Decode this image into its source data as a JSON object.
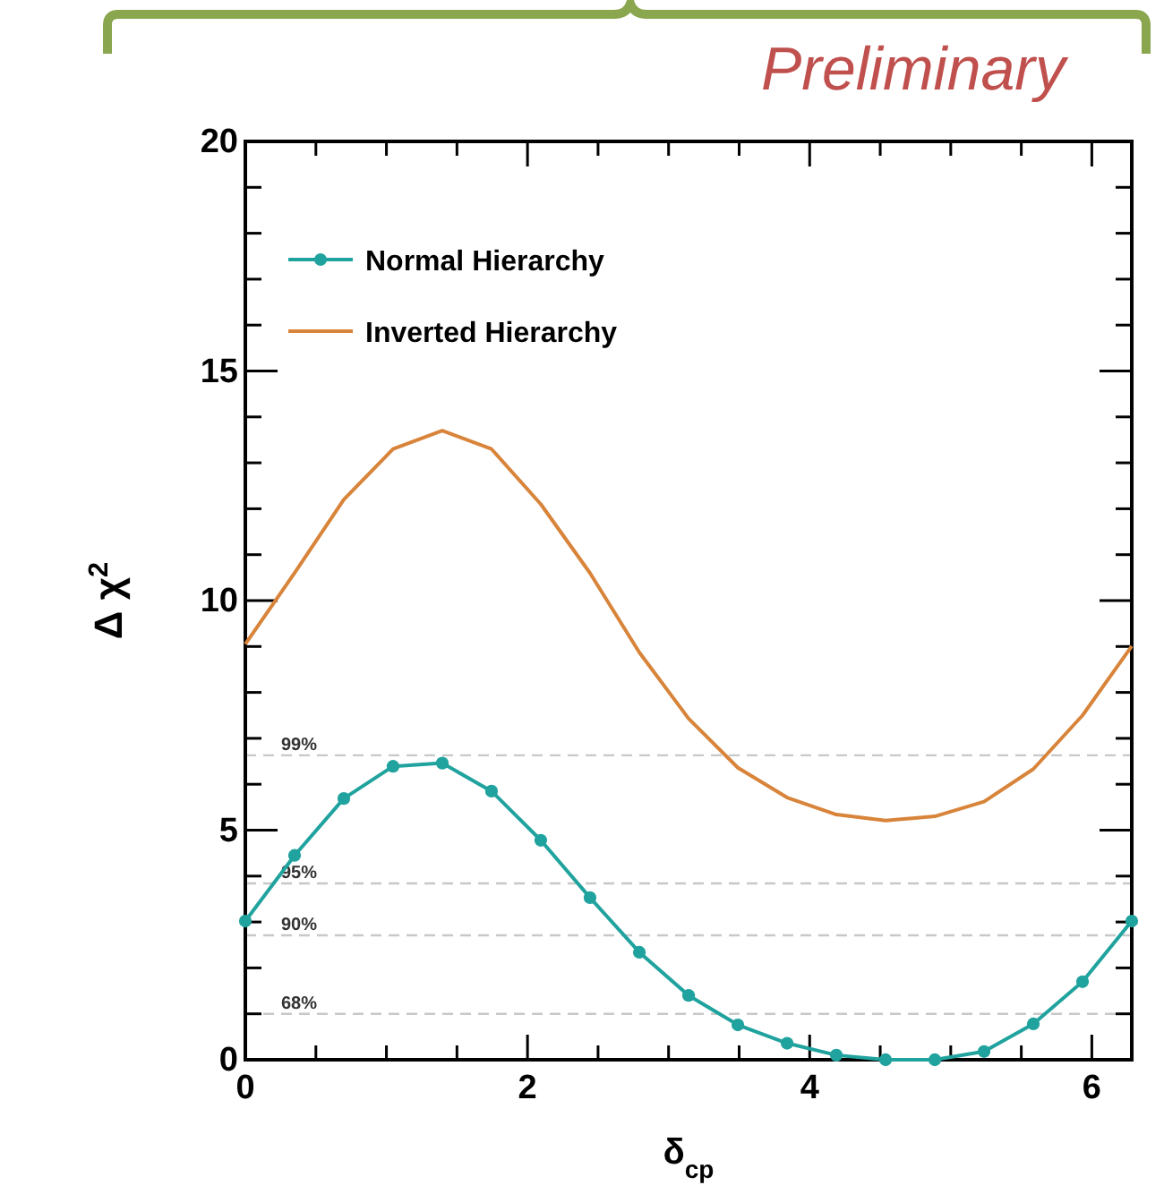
{
  "chart_data": {
    "type": "line",
    "xlabel": "δ$_{cp}$",
    "ylabel": "Δ χ$^{2}$",
    "annotations": [
      "Preliminary",
      {
        "text": "99%",
        "y": 6.63
      },
      {
        "text": "95%",
        "y": 3.84
      },
      {
        "text": "90%",
        "y": 2.71
      },
      {
        "text": "68%",
        "y": 1.0
      }
    ],
    "x": [
      0,
      0.349,
      0.698,
      1.047,
      1.396,
      1.745,
      2.094,
      2.443,
      2.793,
      3.142,
      3.491,
      3.84,
      4.189,
      4.538,
      4.887,
      5.236,
      5.585,
      5.934,
      6.283
    ],
    "series": [
      {
        "name": "Normal Hierarchy",
        "color": "#20a39e",
        "marker": "circle",
        "values": [
          3.02,
          4.45,
          5.69,
          6.39,
          6.46,
          5.85,
          4.78,
          3.53,
          2.34,
          1.4,
          0.76,
          0.36,
          0.1,
          0.0,
          0.0,
          0.18,
          0.78,
          1.7,
          3.02
        ]
      },
      {
        "name": "Inverted Hierarchy",
        "color": "#d8843a",
        "marker": "none",
        "values": [
          9.05,
          10.6,
          12.2,
          13.3,
          13.7,
          13.3,
          12.1,
          10.6,
          8.87,
          7.43,
          6.36,
          5.71,
          5.34,
          5.21,
          5.3,
          5.62,
          6.33,
          7.5,
          9.01
        ]
      }
    ],
    "xlim": [
      0,
      6.283
    ],
    "xticks": [
      0,
      {
        "value": 0.5,
        "label": null
      },
      {
        "value": 1,
        "label": null
      },
      {
        "value": 1.5,
        "label": null
      },
      2,
      {
        "value": 2.5,
        "label": null
      },
      {
        "value": 3,
        "label": null
      },
      {
        "value": 3.5,
        "label": null
      },
      4,
      {
        "value": 4.5,
        "label": null
      },
      {
        "value": 5,
        "label": null
      },
      {
        "value": 5.5,
        "label": null
      },
      6
    ],
    "ylim": [
      0,
      20
    ],
    "yticks": [
      0,
      {
        "value": 1,
        "label": null
      },
      {
        "value": 2,
        "label": null
      },
      {
        "value": 3,
        "label": null
      },
      {
        "value": 4,
        "label": null
      },
      5,
      {
        "value": 6,
        "label": null
      },
      {
        "value": 7,
        "label": null
      },
      {
        "value": 8,
        "label": null
      },
      {
        "value": 9,
        "label": null
      },
      10,
      {
        "value": 11,
        "label": null
      },
      {
        "value": 12,
        "label": null
      },
      {
        "value": 13,
        "label": null
      },
      {
        "value": 14,
        "label": null
      },
      15,
      {
        "value": 16,
        "label": null
      },
      {
        "value": 17,
        "label": null
      },
      {
        "value": 18,
        "label": null
      },
      {
        "value": 19,
        "label": null
      },
      20
    ],
    "ref_lines": [
      {
        "axis": "y",
        "value": 6.63,
        "color": "#c8c8c8",
        "line_style": "dashed"
      },
      {
        "axis": "y",
        "value": 3.84,
        "color": "#c8c8c8",
        "line_style": "dashed"
      },
      {
        "axis": "y",
        "value": 2.71,
        "color": "#c8c8c8",
        "line_style": "dashed"
      },
      {
        "axis": "y",
        "value": 1.0,
        "color": "#c8c8c8",
        "line_style": "dashed"
      }
    ],
    "legend": "top left",
    "grid": false
  }
}
